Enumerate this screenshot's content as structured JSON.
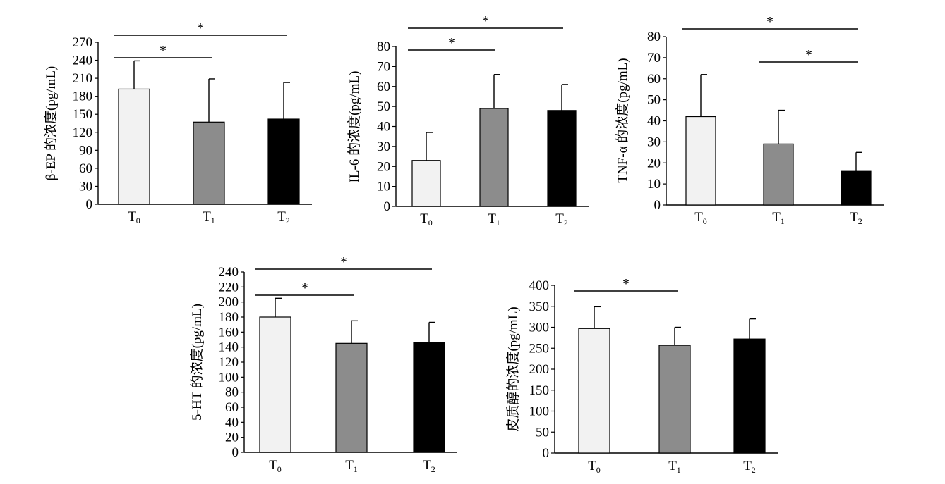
{
  "chart_data": [
    {
      "type": "bar",
      "ylabel": "β-EP 的浓度(pg/mL)",
      "categories": [
        {
          "main": "T",
          "sub": "0"
        },
        {
          "main": "T",
          "sub": "1"
        },
        {
          "main": "T",
          "sub": "2"
        }
      ],
      "values": [
        192,
        137,
        142
      ],
      "errors": [
        47,
        72,
        61
      ],
      "bar_colors": [
        "#f2f2f2",
        "#8c8c8c",
        "#000000"
      ],
      "ylim": [
        0,
        270
      ],
      "yticks": [
        0,
        30,
        60,
        90,
        120,
        150,
        180,
        210,
        240,
        270
      ],
      "significance": [
        {
          "from": 0,
          "to": 1,
          "label": "*"
        },
        {
          "from": 0,
          "to": 2,
          "label": "*"
        }
      ]
    },
    {
      "type": "bar",
      "ylabel": "IL-6 的浓度(pg/mL)",
      "categories": [
        {
          "main": "T",
          "sub": "0"
        },
        {
          "main": "T",
          "sub": "1"
        },
        {
          "main": "T",
          "sub": "2"
        }
      ],
      "values": [
        23,
        49,
        48
      ],
      "errors": [
        14,
        17,
        13
      ],
      "bar_colors": [
        "#f2f2f2",
        "#8c8c8c",
        "#000000"
      ],
      "ylim": [
        0,
        80
      ],
      "yticks": [
        0,
        10,
        20,
        30,
        40,
        50,
        60,
        70,
        80
      ],
      "significance": [
        {
          "from": 0,
          "to": 1,
          "label": "*"
        },
        {
          "from": 0,
          "to": 2,
          "label": "*"
        }
      ]
    },
    {
      "type": "bar",
      "ylabel": "TNF-α 的浓度(pg/mL)",
      "categories": [
        {
          "main": "T",
          "sub": "0"
        },
        {
          "main": "T",
          "sub": "1"
        },
        {
          "main": "T",
          "sub": "2"
        }
      ],
      "values": [
        42,
        29,
        16
      ],
      "errors": [
        20,
        16,
        9
      ],
      "bar_colors": [
        "#f2f2f2",
        "#8c8c8c",
        "#000000"
      ],
      "ylim": [
        0,
        80
      ],
      "yticks": [
        0,
        10,
        20,
        30,
        40,
        50,
        60,
        70,
        80
      ],
      "significance": [
        {
          "from": 1,
          "to": 2,
          "label": "*"
        },
        {
          "from": 0,
          "to": 2,
          "label": "*"
        }
      ]
    },
    {
      "type": "bar",
      "ylabel": "5-HT 的浓度(pg/mL)",
      "categories": [
        {
          "main": "T",
          "sub": "0"
        },
        {
          "main": "T",
          "sub": "1"
        },
        {
          "main": "T",
          "sub": "2"
        }
      ],
      "values": [
        180,
        145,
        146
      ],
      "errors": [
        25,
        30,
        27
      ],
      "bar_colors": [
        "#f2f2f2",
        "#8c8c8c",
        "#000000"
      ],
      "ylim": [
        0,
        240
      ],
      "yticks": [
        0,
        20,
        40,
        60,
        80,
        100,
        120,
        140,
        160,
        180,
        200,
        220,
        240
      ],
      "significance": [
        {
          "from": 0,
          "to": 1,
          "label": "*"
        },
        {
          "from": 0,
          "to": 2,
          "label": "*"
        }
      ]
    },
    {
      "type": "bar",
      "ylabel": "皮质醇的浓度(pg/mL)",
      "categories": [
        {
          "main": "T",
          "sub": "0"
        },
        {
          "main": "T",
          "sub": "1"
        },
        {
          "main": "T",
          "sub": "2"
        }
      ],
      "values": [
        297,
        257,
        272
      ],
      "errors": [
        52,
        43,
        48
      ],
      "bar_colors": [
        "#f2f2f2",
        "#8c8c8c",
        "#000000"
      ],
      "ylim": [
        0,
        400
      ],
      "yticks": [
        0,
        50,
        100,
        150,
        200,
        250,
        300,
        350,
        400
      ],
      "significance": [
        {
          "from": 0,
          "to": 1,
          "label": "*"
        }
      ]
    }
  ]
}
